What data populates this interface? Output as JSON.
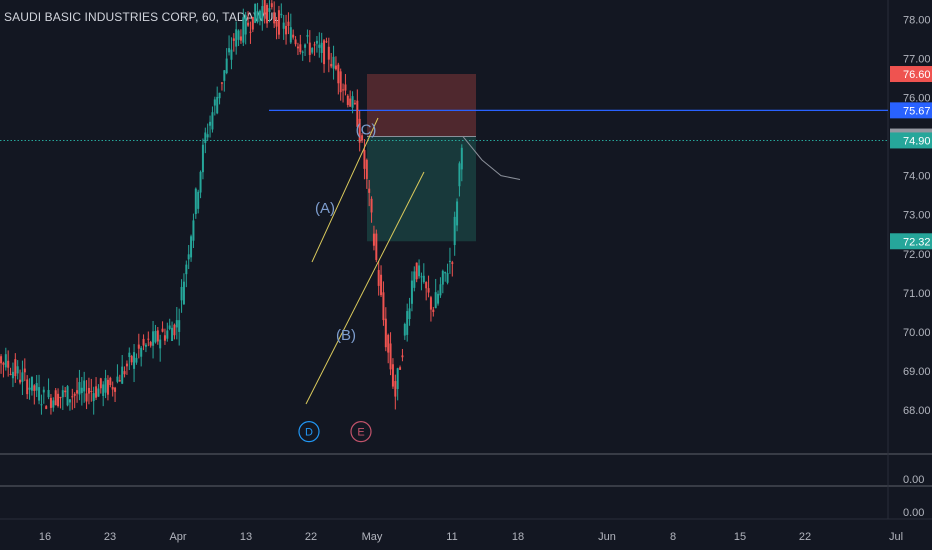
{
  "header": {
    "symbol_line": "SAUDI BASIC INDUSTRIES CORP, 60, TADAWUL"
  },
  "colors": {
    "background": "#131722",
    "up": "#26a69a",
    "down": "#ef5350",
    "horizontal_line": "#2962ff",
    "current_price_line": "#26a69a",
    "trend_lines": "#d9c95c",
    "wave_labels": "#7e9ecf",
    "wave_d": "#2196f3",
    "wave_e": "#c2536b",
    "stop_zone": "#5b2b30",
    "target_zone": "#1a3f3f",
    "projection_path": "#8a8f99"
  },
  "chart_data": [
    {
      "type": "candlestick",
      "title": "SAUDI BASIC INDUSTRIES CORP, 60, TADAWUL",
      "interval": "60",
      "exchange": "TADAWUL",
      "x_tick_labels": [
        "16",
        "23",
        "Apr",
        "13",
        "22",
        "May",
        "11",
        "18",
        "Jun",
        "8",
        "15",
        "22",
        "Jul"
      ],
      "y_tick_labels": [
        "68.00",
        "69.00",
        "70.00",
        "71.00",
        "72.00",
        "73.00",
        "74.00",
        "75.00",
        "76.00",
        "77.00",
        "78.00"
      ],
      "ylim": [
        67.5,
        78.5
      ],
      "grid": false,
      "price_tags": [
        {
          "label": "76.60",
          "value": 76.6,
          "color": "#ef5350"
        },
        {
          "label": "75.67",
          "value": 75.67,
          "color": "#2962ff"
        },
        {
          "label": "75.00",
          "value": 75.0,
          "color": "#9598a1"
        },
        {
          "label": "74.90",
          "value": 74.9,
          "color": "#26a69a"
        },
        {
          "label": "72.32",
          "value": 72.32,
          "color": "#26a69a"
        }
      ],
      "horizontal_line": {
        "value": 75.67
      },
      "current_price": 74.9,
      "risk_reward_box": {
        "entry": 75.0,
        "stop": 76.6,
        "target": 72.32
      },
      "wave_labels": [
        {
          "text": "(A)",
          "price": 73.2
        },
        {
          "text": "(B)",
          "price": 69.95
        },
        {
          "text": "(C)",
          "price": 75.2
        }
      ],
      "circled_labels": [
        {
          "text": "D",
          "price": 67.45
        },
        {
          "text": "E",
          "price": 67.45
        }
      ],
      "approximate_price_path": [
        [
          "Mar 9",
          69.8
        ],
        [
          "Mar 12",
          69.2
        ],
        [
          "Mar 16",
          68.3
        ],
        [
          "Mar 19",
          68.4
        ],
        [
          "Mar 23",
          68.6
        ],
        [
          "Mar 26",
          69.5
        ],
        [
          "Mar 30",
          70.2
        ],
        [
          "Apr 2",
          75.0
        ],
        [
          "Apr 5",
          77.5
        ],
        [
          "Apr 8",
          78.3
        ],
        [
          "Apr 12",
          77.4
        ],
        [
          "Apr 15",
          77.1
        ],
        [
          "Apr 18",
          75.5
        ],
        [
          "Apr 19",
          73.8
        ],
        [
          "Apr 21",
          69.8
        ],
        [
          "Apr 22",
          68.4
        ],
        [
          "Apr 24",
          71.7
        ],
        [
          "Apr 26",
          70.6
        ],
        [
          "Apr 28",
          72.0
        ],
        [
          "Apr 29",
          75.0
        ]
      ],
      "projection_path": [
        [
          "Apr 29",
          75.0
        ],
        [
          "May 1",
          74.4
        ],
        [
          "May 3",
          74.0
        ],
        [
          "May 5",
          73.9
        ]
      ]
    },
    {
      "type": "line",
      "title": "",
      "value_label": "0.00",
      "values": [
        0
      ]
    },
    {
      "type": "line",
      "title": "",
      "value_label": "0.00",
      "values": [
        0
      ]
    }
  ]
}
